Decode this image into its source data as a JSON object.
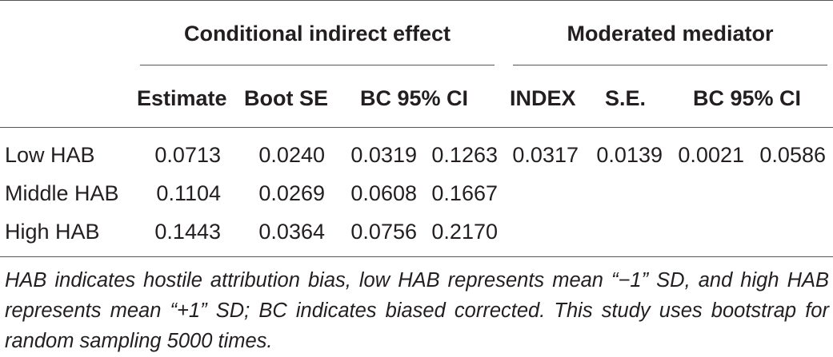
{
  "table": {
    "group_headers": {
      "conditional": "Conditional indirect effect",
      "moderated": "Moderated mediator"
    },
    "sub_headers": {
      "estimate": "Estimate",
      "boot_se": "Boot SE",
      "bc_ci_1": "BC 95% CI",
      "index": "INDEX",
      "se": "S.E.",
      "bc_ci_2": "BC 95% CI"
    },
    "rows": [
      {
        "label": "Low HAB",
        "estimate": "0.0713",
        "boot_se": "0.0240",
        "ci_low": "0.0319",
        "ci_high": "0.1263",
        "index": "0.0317",
        "se": "0.0139",
        "mm_ci_low": "0.0021",
        "mm_ci_high": "0.0586"
      },
      {
        "label": "Middle HAB",
        "estimate": "0.1104",
        "boot_se": "0.0269",
        "ci_low": "0.0608",
        "ci_high": "0.1667"
      },
      {
        "label": "High HAB",
        "estimate": "0.1443",
        "boot_se": "0.0364",
        "ci_low": "0.0756",
        "ci_high": "0.2170"
      }
    ]
  },
  "footnote": "HAB indicates hostile attribution bias, low HAB represents mean “−1” SD, and high HAB represents mean “+1” SD; BC indicates biased corrected. This study uses bootstrap for random sampling 5000 times."
}
